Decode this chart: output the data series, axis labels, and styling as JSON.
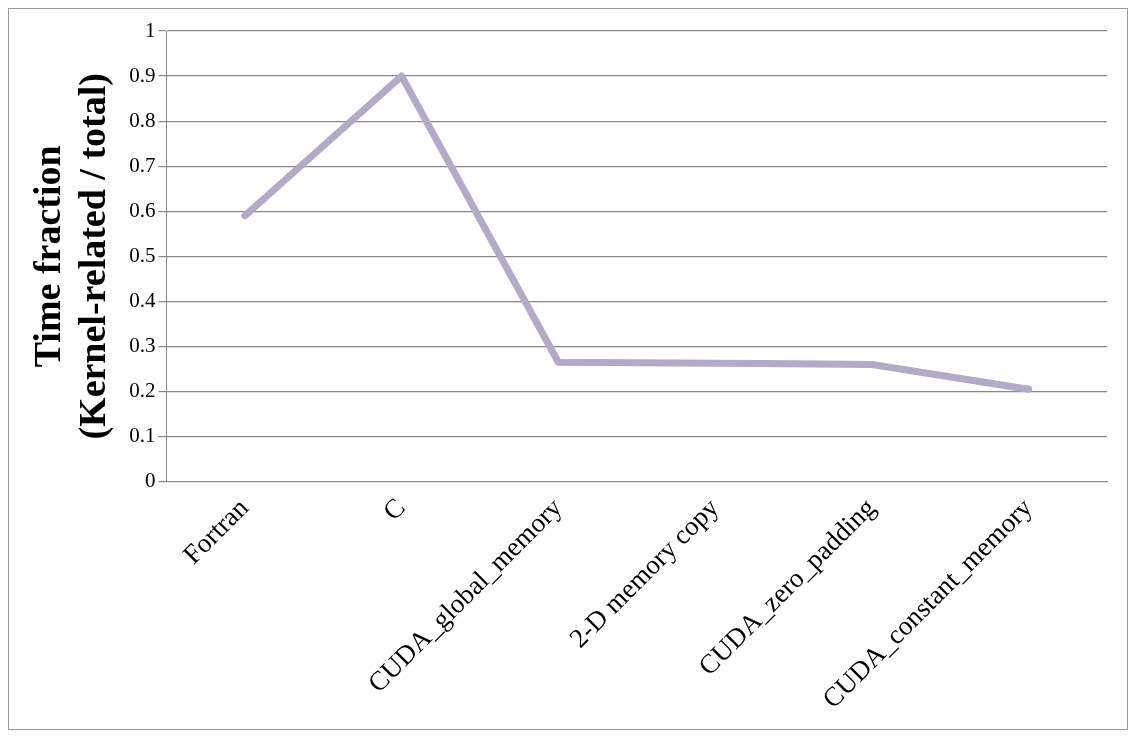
{
  "chart_data": {
    "type": "line",
    "ylabel": "Time fraction\n(Kernel-related / total)",
    "categories": [
      "Fortran",
      "C",
      "CUDA_global_memory",
      "2-D memory copy",
      "CUDA_zero_padding",
      "CUDA_constant_memory"
    ],
    "values": [
      0.59,
      0.9,
      0.265,
      0.263,
      0.26,
      0.205
    ],
    "color": "#b3a9c9",
    "ylim": [
      0,
      1
    ],
    "yticks": [
      0,
      0.1,
      0.2,
      0.3,
      0.4,
      0.5,
      0.6,
      0.7,
      0.8,
      0.9,
      1
    ],
    "grid": "y",
    "marker": "none",
    "legend": false,
    "line_style": "solid"
  }
}
